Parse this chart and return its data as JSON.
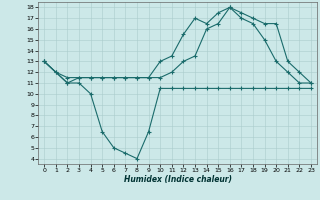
{
  "xlabel": "Humidex (Indice chaleur)",
  "bg_color": "#cce8e8",
  "grid_color": "#aacccc",
  "line_color": "#1a6b6b",
  "xlim": [
    -0.5,
    23.5
  ],
  "ylim": [
    3.5,
    18.5
  ],
  "xticks": [
    0,
    1,
    2,
    3,
    4,
    5,
    6,
    7,
    8,
    9,
    10,
    11,
    12,
    13,
    14,
    15,
    16,
    17,
    18,
    19,
    20,
    21,
    22,
    23
  ],
  "yticks": [
    4,
    5,
    6,
    7,
    8,
    9,
    10,
    11,
    12,
    13,
    14,
    15,
    16,
    17,
    18
  ],
  "line1_x": [
    0,
    1,
    2,
    3,
    4,
    5,
    6,
    7,
    8,
    9,
    10,
    11,
    12,
    13,
    14,
    15,
    16,
    17,
    18,
    19,
    20,
    21,
    22,
    23
  ],
  "line1_y": [
    13,
    12,
    11,
    11,
    10,
    6.5,
    5,
    4.5,
    4,
    6.5,
    10.5,
    10.5,
    10.5,
    10.5,
    10.5,
    10.5,
    10.5,
    10.5,
    10.5,
    10.5,
    10.5,
    10.5,
    10.5,
    10.5
  ],
  "line2_x": [
    0,
    1,
    2,
    3,
    4,
    5,
    6,
    7,
    8,
    9,
    10,
    11,
    12,
    13,
    14,
    15,
    16,
    17,
    18,
    19,
    20,
    21,
    22,
    23
  ],
  "line2_y": [
    13,
    12,
    11.5,
    11.5,
    11.5,
    11.5,
    11.5,
    11.5,
    11.5,
    11.5,
    13,
    13.5,
    15.5,
    17,
    16.5,
    17.5,
    18,
    17,
    16.5,
    15,
    13,
    12,
    11,
    11
  ],
  "line3_x": [
    0,
    2,
    3,
    4,
    5,
    6,
    7,
    8,
    9,
    10,
    11,
    12,
    13,
    14,
    15,
    16,
    17,
    18,
    19,
    20,
    21,
    22,
    23
  ],
  "line3_y": [
    13,
    11,
    11.5,
    11.5,
    11.5,
    11.5,
    11.5,
    11.5,
    11.5,
    11.5,
    12,
    13,
    13.5,
    16,
    16.5,
    18,
    17.5,
    17,
    16.5,
    16.5,
    13,
    12,
    11
  ]
}
